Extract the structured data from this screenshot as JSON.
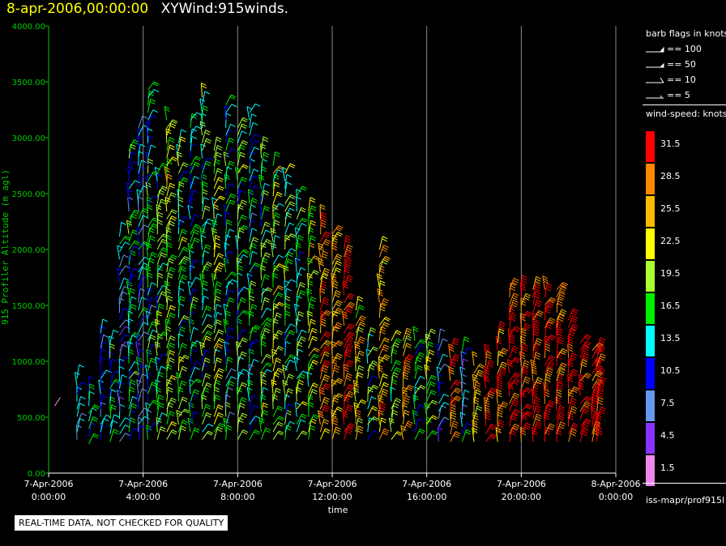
{
  "header": {
    "date": "8-apr-2006,00:00:00",
    "name": "XYWind:915winds."
  },
  "notice": "REAL-TIME DATA, NOT CHECKED FOR QUALITY",
  "legend": {
    "barb_title": "barb flags in knots",
    "barbs": [
      {
        "label": "== 100"
      },
      {
        "label": "== 50"
      },
      {
        "label": "== 10"
      },
      {
        "label": "== 5"
      }
    ],
    "speed_title": "wind-speed: knots",
    "speeds": [
      {
        "label": "31.5",
        "color": "#ff0000"
      },
      {
        "label": "28.5",
        "color": "#ff8800"
      },
      {
        "label": "25.5",
        "color": "#ffbb00"
      },
      {
        "label": "22.5",
        "color": "#ffff00"
      },
      {
        "label": "19.5",
        "color": "#aaff33"
      },
      {
        "label": "16.5",
        "color": "#00ee00"
      },
      {
        "label": "13.5",
        "color": "#00ffff"
      },
      {
        "label": "10.5",
        "color": "#0000ff"
      },
      {
        "label": "7.5",
        "color": "#6699ee"
      },
      {
        "label": "4.5",
        "color": "#8833ff"
      },
      {
        "label": "1.5",
        "color": "#ee88ee"
      }
    ],
    "footer": "iss-mapr/prof915l"
  },
  "chart_data": {
    "type": "scatter",
    "title": "XYWind:915winds.",
    "xlabel": "time",
    "ylabel": "915 Profiler Altitude (m agl)",
    "ylim": [
      0,
      4000
    ],
    "xlim_hours": [
      0,
      24
    ],
    "yticks": [
      "0.00",
      "500.00",
      "1000.00",
      "1500.00",
      "2000.00",
      "2500.00",
      "3000.00",
      "3500.00",
      "4000.00"
    ],
    "xticks": [
      {
        "date": "7-Apr-2006",
        "time": "0:00:00"
      },
      {
        "date": "7-Apr-2006",
        "time": "4:00:00"
      },
      {
        "date": "7-Apr-2006",
        "time": "8:00:00"
      },
      {
        "date": "7-Apr-2006",
        "time": "12:00:00"
      },
      {
        "date": "7-Apr-2006",
        "time": "16:00:00"
      },
      {
        "date": "7-Apr-2006",
        "time": "20:00:00"
      },
      {
        "date": "8-Apr-2006",
        "time": "0:00:00"
      }
    ],
    "grid": "vertical",
    "axis_color": "#00cc00",
    "series": [
      {
        "x": 0.25,
        "y_range": [
          600,
          610
        ],
        "speed": 7.5
      },
      {
        "x": 1.2,
        "y_range": [
          300,
          900
        ],
        "speed": 10.5
      },
      {
        "x": 1.7,
        "y_range": [
          260,
          800
        ],
        "speed": 13.5
      },
      {
        "x": 2.2,
        "y_range": [
          300,
          1280
        ],
        "speed": 10.5
      },
      {
        "x": 2.6,
        "y_range": [
          280,
          1200
        ],
        "speed": 13.5
      },
      {
        "x": 3.0,
        "y_range": [
          280,
          2150
        ],
        "speed": 10.5
      },
      {
        "x": 3.4,
        "y_range": [
          300,
          2900
        ],
        "speed": 13.5
      },
      {
        "x": 3.8,
        "y_range": [
          300,
          3100
        ],
        "speed": 10.5
      },
      {
        "x": 4.2,
        "y_range": [
          300,
          3450
        ],
        "speed": 13.5
      },
      {
        "x": 4.6,
        "y_range": [
          300,
          2700
        ],
        "speed": 16.5
      },
      {
        "x": 5.0,
        "y_range": [
          300,
          3200
        ],
        "speed": 19.5
      },
      {
        "x": 5.5,
        "y_range": [
          300,
          3000
        ],
        "speed": 16.5
      },
      {
        "x": 6.0,
        "y_range": [
          300,
          3200
        ],
        "speed": 13.5
      },
      {
        "x": 6.5,
        "y_range": [
          300,
          3400
        ],
        "speed": 16.5
      },
      {
        "x": 7.0,
        "y_range": [
          300,
          2900
        ],
        "speed": 19.5
      },
      {
        "x": 7.5,
        "y_range": [
          300,
          3300
        ],
        "speed": 13.5
      },
      {
        "x": 8.0,
        "y_range": [
          300,
          3100
        ],
        "speed": 16.5
      },
      {
        "x": 8.5,
        "y_range": [
          300,
          3250
        ],
        "speed": 13.5
      },
      {
        "x": 9.0,
        "y_range": [
          300,
          2900
        ],
        "speed": 16.5
      },
      {
        "x": 9.5,
        "y_range": [
          300,
          2800
        ],
        "speed": 19.5
      },
      {
        "x": 10.0,
        "y_range": [
          300,
          2700
        ],
        "speed": 16.5
      },
      {
        "x": 10.5,
        "y_range": [
          300,
          2500
        ],
        "speed": 16.5
      },
      {
        "x": 11.0,
        "y_range": [
          300,
          2400
        ],
        "speed": 19.5
      },
      {
        "x": 11.5,
        "y_range": [
          300,
          2300
        ],
        "speed": 28.5
      },
      {
        "x": 12.0,
        "y_range": [
          300,
          2200
        ],
        "speed": 25.5
      },
      {
        "x": 12.5,
        "y_range": [
          300,
          2050
        ],
        "speed": 31.5
      },
      {
        "x": 13.0,
        "y_range": [
          300,
          1500
        ],
        "speed": 22.5
      },
      {
        "x": 13.5,
        "y_range": [
          300,
          1250
        ],
        "speed": 16.5
      },
      {
        "x": 14.0,
        "y_range": [
          300,
          2000
        ],
        "speed": 25.5
      },
      {
        "x": 14.5,
        "y_range": [
          300,
          1200
        ],
        "speed": 19.5
      },
      {
        "x": 15.0,
        "y_range": [
          300,
          1200
        ],
        "speed": 25.5
      },
      {
        "x": 15.5,
        "y_range": [
          300,
          1200
        ],
        "speed": 13.5
      },
      {
        "x": 16.0,
        "y_range": [
          300,
          1200
        ],
        "speed": 19.5
      },
      {
        "x": 16.5,
        "y_range": [
          280,
          1200
        ],
        "speed": 10.5
      },
      {
        "x": 17.0,
        "y_range": [
          280,
          1150
        ],
        "speed": 28.5
      },
      {
        "x": 17.5,
        "y_range": [
          280,
          1100
        ],
        "speed": 10.5
      },
      {
        "x": 18.0,
        "y_range": [
          280,
          1000
        ],
        "speed": 25.5
      },
      {
        "x": 18.5,
        "y_range": [
          280,
          1050
        ],
        "speed": 31.5
      },
      {
        "x": 19.0,
        "y_range": [
          280,
          1250
        ],
        "speed": 28.5
      },
      {
        "x": 19.5,
        "y_range": [
          280,
          1650
        ],
        "speed": 31.5
      },
      {
        "x": 20.0,
        "y_range": [
          280,
          1700
        ],
        "speed": 31.5
      },
      {
        "x": 20.5,
        "y_range": [
          280,
          1700
        ],
        "speed": 31.5
      },
      {
        "x": 21.0,
        "y_range": [
          280,
          1700
        ],
        "speed": 31.5
      },
      {
        "x": 21.5,
        "y_range": [
          280,
          1650
        ],
        "speed": 31.5
      },
      {
        "x": 22.0,
        "y_range": [
          280,
          1400
        ],
        "speed": 31.5
      },
      {
        "x": 22.5,
        "y_range": [
          280,
          1200
        ],
        "speed": 31.5
      },
      {
        "x": 23.0,
        "y_range": [
          280,
          1150
        ],
        "speed": 31.5
      },
      {
        "x": 23.2,
        "y_range": [
          280,
          1100
        ],
        "speed": 31.5
      }
    ]
  }
}
